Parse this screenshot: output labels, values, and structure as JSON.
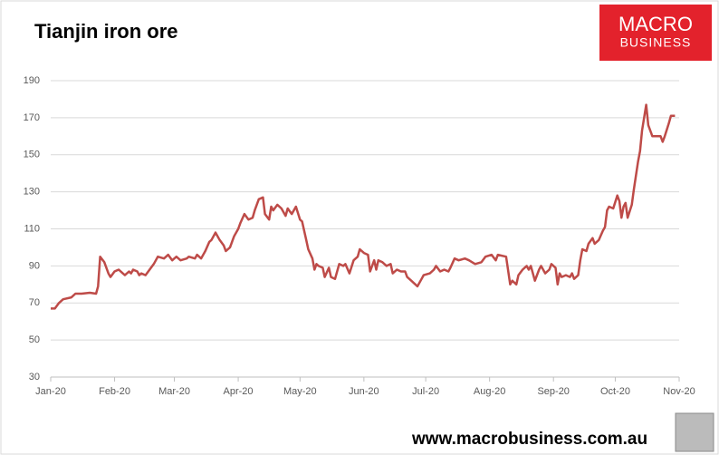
{
  "chart_data": {
    "type": "line",
    "title": "Tianjin iron ore",
    "x": [
      0,
      2,
      4,
      6,
      10,
      12,
      15,
      19,
      22,
      23,
      24,
      26,
      28,
      29,
      31,
      33,
      35,
      36,
      38,
      39,
      40,
      42,
      43,
      44,
      46,
      48,
      50,
      52,
      55,
      57,
      59,
      61,
      63,
      66,
      67,
      70,
      71,
      73,
      75,
      77,
      78,
      80,
      82,
      84,
      85,
      87,
      89,
      91,
      92,
      94,
      96,
      98,
      99,
      101,
      103,
      104,
      106,
      107,
      108,
      110,
      112,
      114,
      115,
      117,
      119,
      121,
      122,
      124,
      125,
      127,
      128,
      129,
      130,
      132,
      133,
      135,
      136,
      138,
      140,
      142,
      143,
      145,
      147,
      149,
      150,
      152,
      154,
      155,
      157,
      158,
      159,
      161,
      163,
      165,
      166,
      168,
      170,
      172,
      173,
      175,
      178,
      180,
      181,
      184,
      186,
      187,
      189,
      191,
      193,
      194,
      196,
      198,
      201,
      203,
      206,
      209,
      211,
      214,
      216,
      217,
      221,
      223,
      224,
      226,
      227,
      229,
      231,
      232,
      233,
      235,
      237,
      238,
      240,
      242,
      243,
      245,
      246,
      247,
      248,
      250,
      252,
      253,
      254,
      256,
      257,
      258,
      260,
      261,
      263,
      264,
      266,
      268,
      269,
      270,
      271,
      273,
      275,
      276,
      277,
      278,
      279,
      280,
      282,
      283,
      285,
      286,
      287,
      289,
      290,
      292,
      294,
      296,
      297,
      298,
      300,
      301,
      303
    ],
    "series": [
      {
        "color": "#be4b48",
        "values": [
          67,
          67,
          70,
          72,
          73,
          75,
          75,
          75.5,
          75,
          79,
          95,
          92,
          86,
          84,
          87,
          88,
          86,
          85,
          87,
          86,
          88,
          87,
          85,
          86,
          85,
          88,
          91,
          95,
          94,
          96,
          93,
          95,
          93,
          94,
          95,
          94,
          96,
          94,
          98,
          103,
          104,
          108,
          104,
          101,
          98,
          100,
          106,
          110,
          113,
          118,
          115,
          116,
          120,
          126,
          127,
          118,
          115,
          122,
          120,
          123,
          121,
          117,
          121,
          118,
          122,
          115,
          114,
          104,
          99,
          94,
          88,
          91,
          90,
          89,
          84,
          89,
          84,
          83,
          91,
          90,
          91,
          86,
          93,
          95,
          99,
          97,
          96,
          87,
          93,
          88,
          93,
          92,
          90,
          91,
          86,
          88,
          87,
          87,
          84,
          82,
          79,
          83,
          85,
          86,
          88,
          90,
          87,
          88,
          87,
          89,
          94,
          93,
          94,
          93,
          91,
          92,
          95,
          96,
          93,
          96,
          95,
          80,
          82,
          80,
          85,
          88,
          90,
          88,
          90,
          82,
          88,
          90,
          86,
          88,
          91,
          89,
          80,
          86,
          84,
          85,
          84,
          86,
          83,
          85,
          93,
          99,
          98,
          102,
          105,
          102,
          104,
          109,
          111,
          120,
          122,
          121,
          128,
          125,
          116,
          122,
          124,
          116,
          123,
          131,
          146,
          152,
          163,
          177,
          166,
          160,
          160,
          160,
          157,
          160,
          167,
          171,
          171
        ]
      }
    ],
    "xlim": [
      0,
      305
    ],
    "xticks": [
      {
        "value": 0,
        "label": "Jan-20"
      },
      {
        "value": 31,
        "label": "Feb-20"
      },
      {
        "value": 60,
        "label": "Mar-20"
      },
      {
        "value": 91,
        "label": "Apr-20"
      },
      {
        "value": 121,
        "label": "May-20"
      },
      {
        "value": 152,
        "label": "Jun-20"
      },
      {
        "value": 182,
        "label": "Jul-20"
      },
      {
        "value": 213,
        "label": "Aug-20"
      },
      {
        "value": 244,
        "label": "Sep-20"
      },
      {
        "value": 274,
        "label": "Oct-20"
      },
      {
        "value": 305,
        "label": "Nov-20"
      }
    ],
    "ylim": [
      30,
      190
    ],
    "yticks": [
      30,
      50,
      70,
      90,
      110,
      130,
      150,
      170,
      190
    ],
    "grid": true
  },
  "logo": {
    "line1": "MACRO",
    "line2": "BUSINESS"
  },
  "footer": "www.macrobusiness.com.au"
}
